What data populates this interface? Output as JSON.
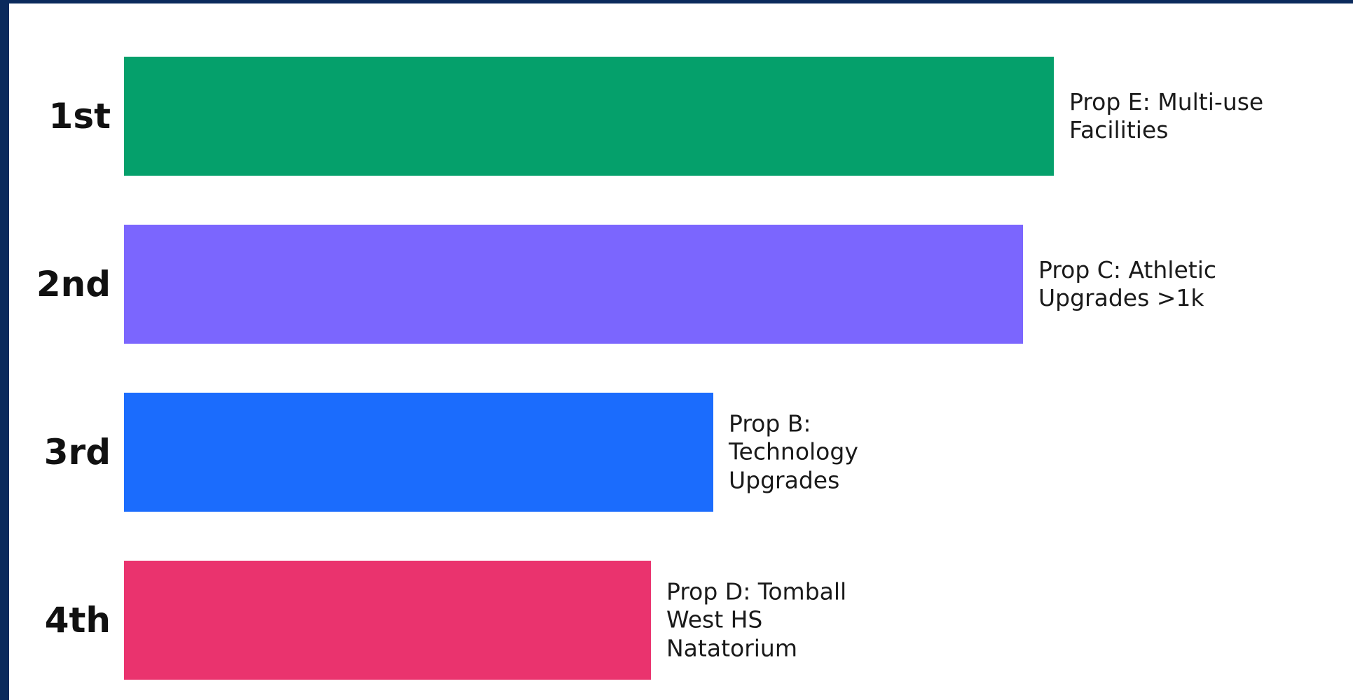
{
  "chart_data": {
    "type": "bar",
    "orientation": "horizontal",
    "title": "",
    "xlabel": "",
    "ylabel": "",
    "xlim": [
      0,
      100
    ],
    "grid": false,
    "legend": "none",
    "bars": [
      {
        "rank": "1st",
        "label": "Prop E: Multi-use\nFacilities",
        "value": 100,
        "color": "#05a06b"
      },
      {
        "rank": "2nd",
        "label": "Prop C: Athletic\nUpgrades >1k",
        "value": 96.7,
        "color": "#7b66fe"
      },
      {
        "rank": "3rd",
        "label": "Prop B:\nTechnology\nUpgrades",
        "value": 63.4,
        "color": "#1b6cfd"
      },
      {
        "rank": "4th",
        "label": "Prop D: Tomball\nWest HS\nNatatorium",
        "value": 56.7,
        "color": "#ea336e"
      }
    ]
  }
}
